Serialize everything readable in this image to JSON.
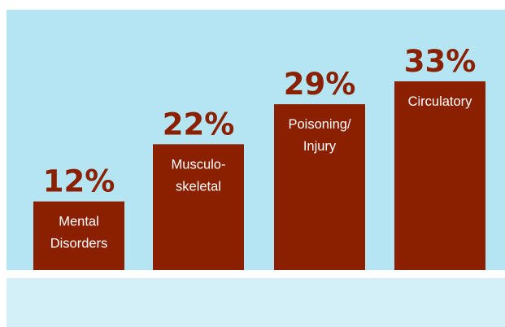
{
  "chart_data": {
    "type": "bar",
    "categories": [
      [
        "Mental",
        "Disorders"
      ],
      [
        "Musculo-",
        "skeletal"
      ],
      [
        "Poisoning/",
        "Injury"
      ],
      [
        "Circulatory"
      ]
    ],
    "values": [
      12,
      22,
      29,
      33
    ],
    "value_labels": [
      "12%",
      "22%",
      "29%",
      "33%"
    ],
    "title": "",
    "xlabel": "",
    "ylabel": "",
    "ylim": [
      0,
      40
    ],
    "grid": false,
    "legend": "none"
  },
  "colors": {
    "plot_background": "#b5e4f3",
    "lower_band": "#d3f0f9",
    "bar": "#8b2000",
    "value_text": "#8b2000",
    "bar_text": "#ffffff"
  }
}
